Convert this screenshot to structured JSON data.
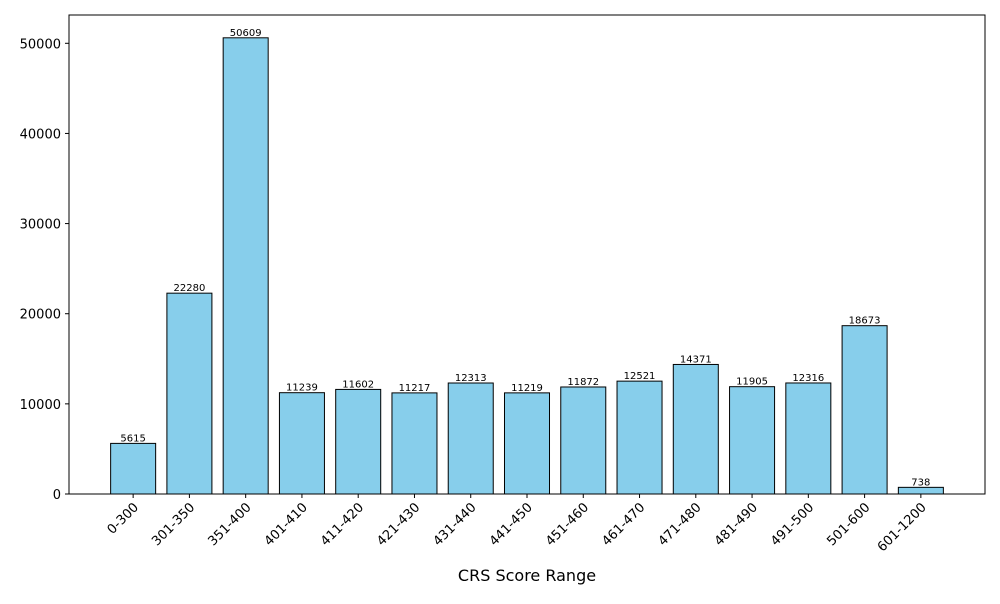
{
  "chart_data": {
    "type": "bar",
    "x_label": "CRS Score Range",
    "categories": [
      "0-300",
      "301-350",
      "351-400",
      "401-410",
      "411-420",
      "421-430",
      "431-440",
      "441-450",
      "451-460",
      "461-470",
      "471-480",
      "481-490",
      "491-500",
      "501-600",
      "601-1200"
    ],
    "values": [
      5615,
      22280,
      50609,
      11239,
      11602,
      11217,
      12313,
      11219,
      11872,
      12521,
      14371,
      11905,
      12316,
      18673,
      738
    ],
    "color": "#87ceeb",
    "edge_color": "#000000",
    "ylim": [
      0,
      53139
    ],
    "yticks": [
      0,
      10000,
      20000,
      30000,
      40000,
      50000
    ],
    "grid": false
  }
}
